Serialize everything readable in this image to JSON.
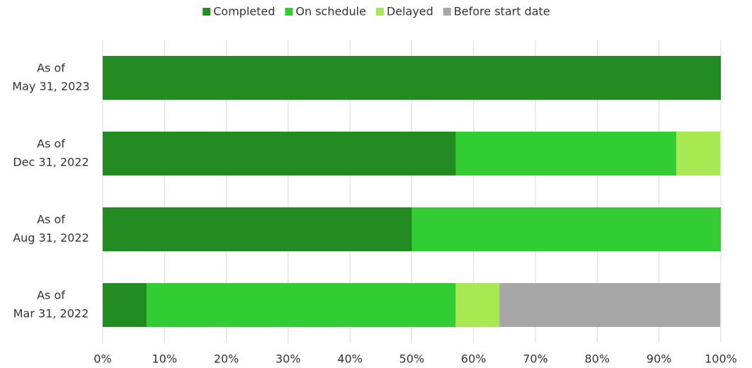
{
  "chart_data": {
    "type": "stacked-bar-horizontal",
    "categories": [
      [
        "As of",
        "May 31, 2023"
      ],
      [
        "As of",
        "Dec 31, 2022"
      ],
      [
        "As of",
        "Aug 31, 2022"
      ],
      [
        "As of",
        "Mar 31, 2022"
      ]
    ],
    "series": [
      {
        "name": "Completed",
        "color": "#228b22",
        "values": [
          100,
          57.1,
          50,
          7.1
        ]
      },
      {
        "name": "On schedule",
        "color": "#33cc33",
        "values": [
          0,
          35.7,
          50,
          50
        ]
      },
      {
        "name": "Delayed",
        "color": "#a8e852",
        "values": [
          0,
          7.1,
          0,
          7.1
        ]
      },
      {
        "name": "Before start date",
        "color": "#a6a6a6",
        "values": [
          0,
          0,
          0,
          35.7
        ]
      }
    ],
    "xlim": [
      0,
      100
    ],
    "xticks": [
      {
        "value": 0,
        "label": "0%"
      },
      {
        "value": 10,
        "label": "10%"
      },
      {
        "value": 20,
        "label": "20%"
      },
      {
        "value": 30,
        "label": "30%"
      },
      {
        "value": 40,
        "label": "40%"
      },
      {
        "value": 50,
        "label": "50%"
      },
      {
        "value": 60,
        "label": "60%"
      },
      {
        "value": 70,
        "label": "70%"
      },
      {
        "value": 80,
        "label": "80%"
      },
      {
        "value": 90,
        "label": "90%"
      },
      {
        "value": 100,
        "label": "100%"
      }
    ],
    "grid": true,
    "legend": "top"
  }
}
